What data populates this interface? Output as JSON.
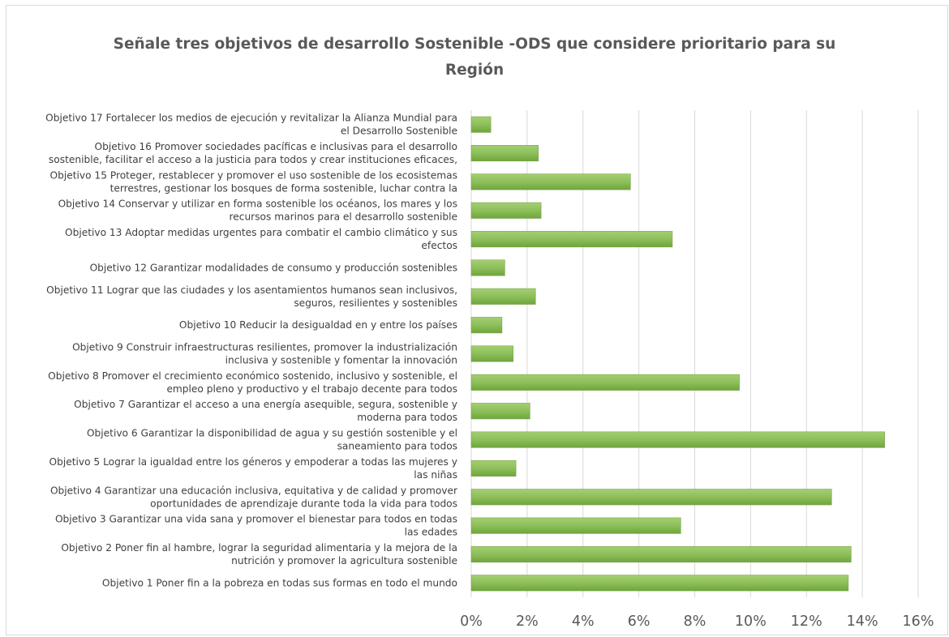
{
  "chart_data": {
    "type": "bar",
    "orientation": "horizontal",
    "title": "Señale tres objetivos de desarrollo Sostenible -ODS que considere prioritario para su Región",
    "xlabel": "",
    "ylabel": "",
    "xlim": [
      0,
      0.16
    ],
    "x_ticks": [
      "0%",
      "2%",
      "4%",
      "6%",
      "8%",
      "10%",
      "12%",
      "14%",
      "16%"
    ],
    "grid": true,
    "bar_color": "#8dbf5a",
    "categories": [
      [
        "Objetivo 17 Fortalecer los medios de ejecución y revitalizar la Alianza Mundial para",
        "el Desarrollo Sostenible"
      ],
      [
        "Objetivo 16 Promover sociedades pacíficas e inclusivas para el desarrollo",
        "sostenible, facilitar el acceso a la justicia para todos y crear instituciones eficaces,"
      ],
      [
        "Objetivo 15 Proteger, restablecer y promover el uso sostenible de los ecosistemas",
        "terrestres, gestionar los bosques de forma sostenible, luchar contra la"
      ],
      [
        "Objetivo 14 Conservar y utilizar en forma sostenible los océanos, los mares y los",
        "recursos marinos para el desarrollo sostenible"
      ],
      [
        "Objetivo 13 Adoptar medidas urgentes para combatir el cambio climático y sus",
        "efectos"
      ],
      [
        "Objetivo 12 Garantizar modalidades de consumo y producción sostenibles"
      ],
      [
        "Objetivo 11 Lograr que las ciudades y los asentamientos humanos sean inclusivos,",
        "seguros, resilientes y sostenibles"
      ],
      [
        "Objetivo 10 Reducir la desigualdad en y entre los países"
      ],
      [
        "Objetivo 9 Construir infraestructuras resilientes, promover la industrialización",
        "inclusiva y sostenible y fomentar la innovación"
      ],
      [
        "Objetivo 8 Promover el crecimiento económico sostenido, inclusivo y sostenible, el",
        "empleo pleno y productivo y el trabajo decente para todos"
      ],
      [
        "Objetivo 7 Garantizar el acceso a una energía asequible, segura, sostenible y",
        "moderna para todos"
      ],
      [
        "Objetivo 6 Garantizar la disponibilidad de agua y su gestión sostenible y el",
        "saneamiento para todos"
      ],
      [
        "Objetivo 5 Lograr la igualdad entre los géneros y empoderar a todas las mujeres y",
        "las niñas"
      ],
      [
        "Objetivo 4 Garantizar una educación inclusiva, equitativa y de calidad y promover",
        "oportunidades de aprendizaje durante toda la vida para todos"
      ],
      [
        "Objetivo 3 Garantizar una vida sana y promover el bienestar para todos en todas",
        "las edades"
      ],
      [
        "Objetivo 2 Poner fin al hambre, lograr la seguridad alimentaria y la mejora de la",
        "nutrición y promover la agricultura sostenible"
      ],
      [
        "Objetivo 1 Poner fin a la pobreza en todas sus formas en todo el mundo"
      ]
    ],
    "values": [
      0.007,
      0.024,
      0.057,
      0.025,
      0.072,
      0.012,
      0.023,
      0.011,
      0.015,
      0.096,
      0.021,
      0.148,
      0.016,
      0.129,
      0.075,
      0.136,
      0.135
    ]
  }
}
